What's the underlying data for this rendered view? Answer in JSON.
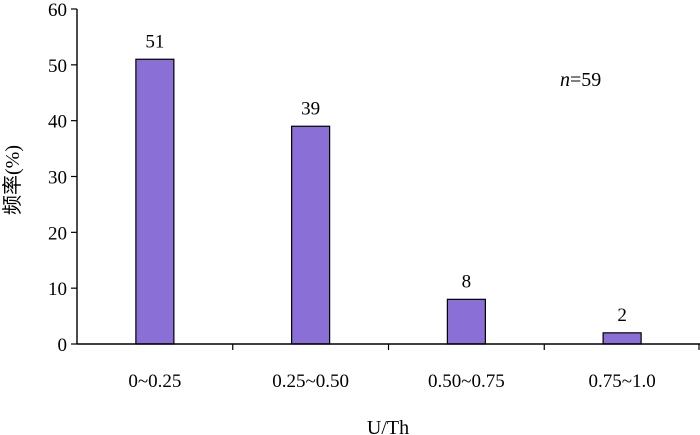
{
  "chart_data": {
    "type": "bar",
    "categories": [
      "0~0.25",
      "0.25~0.50",
      "0.50~0.75",
      "0.75~1.0"
    ],
    "values": [
      51,
      39,
      8,
      2
    ],
    "data_labels": [
      "51",
      "39",
      "8",
      "2"
    ],
    "title": "",
    "xlabel": "U/Th",
    "ylabel": "频率(%)",
    "ylim": [
      0,
      60
    ],
    "yticks": [
      0,
      10,
      20,
      30,
      40,
      50,
      60
    ],
    "grid": false,
    "legend": "none",
    "annotation": {
      "italic": "n",
      "rest": "=59"
    },
    "bar_color": "#8a6fd6"
  }
}
